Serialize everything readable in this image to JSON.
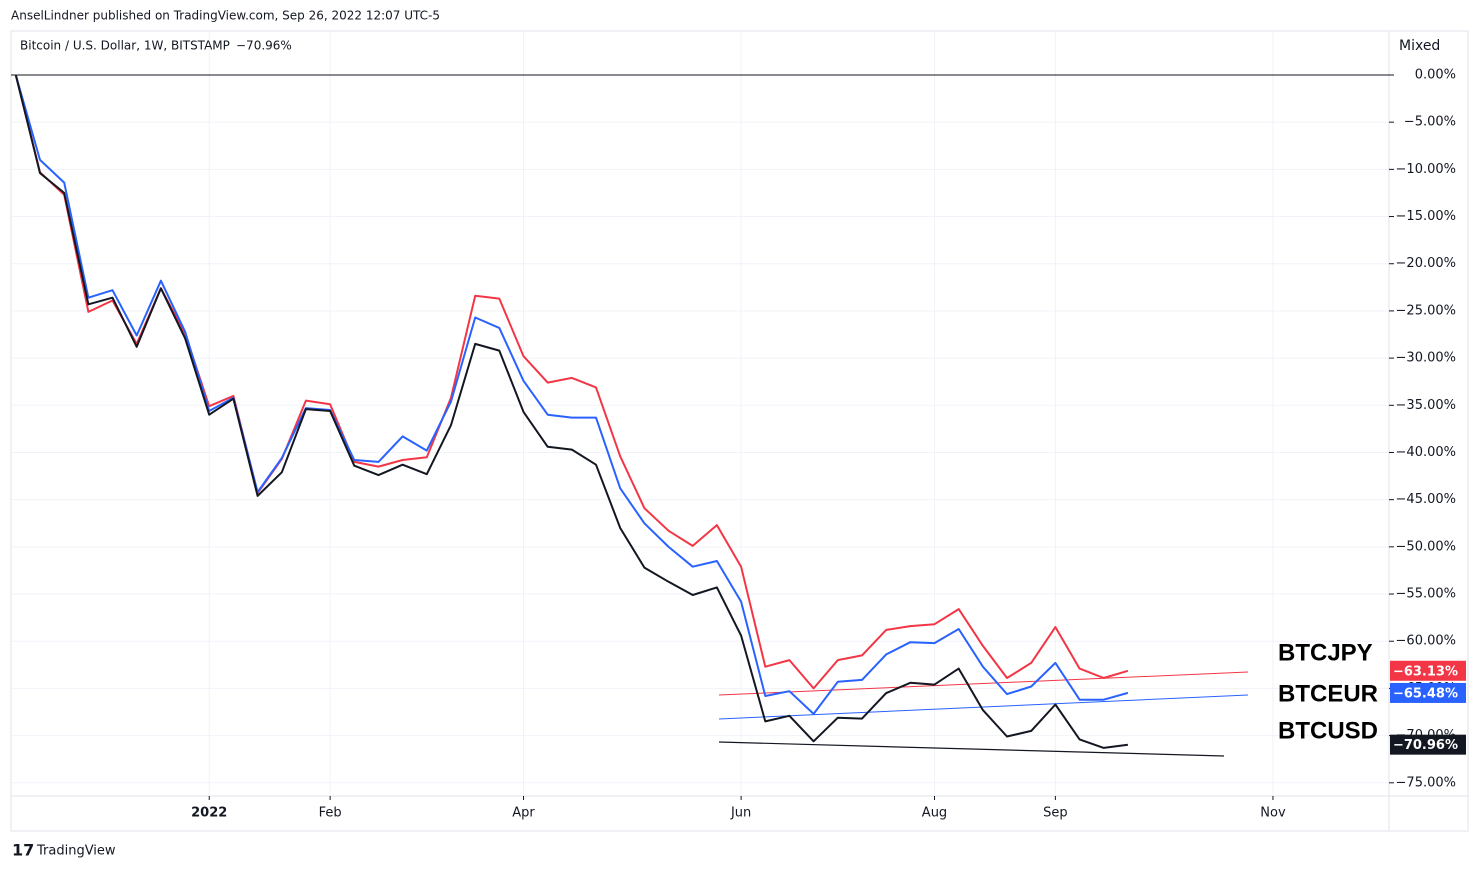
{
  "header": "AnselLindner published on TradingView.com, Sep 26, 2022 12:07 UTC-5",
  "footer": "TradingView",
  "chart_data": {
    "type": "line",
    "title": "Bitcoin / U.S. Dollar, 1W, BITSTAMP",
    "scale_mode": "Mixed",
    "grid": true,
    "x": [
      0,
      1,
      2,
      3,
      4,
      5,
      6,
      7,
      8,
      9,
      10,
      11,
      12,
      13,
      14,
      15,
      16,
      17,
      18,
      19,
      20,
      21,
      22,
      23,
      24,
      25,
      26,
      27,
      28,
      29,
      30,
      31,
      32,
      33,
      34,
      35,
      36,
      37,
      38,
      39,
      40,
      41,
      42,
      43,
      44,
      45,
      46
    ],
    "xlim": [
      -0.2,
      56.8
    ],
    "xticks": [
      {
        "value": 8,
        "label": "2022"
      },
      {
        "value": 13,
        "label": "Feb"
      },
      {
        "value": 21,
        "label": "Apr"
      },
      {
        "value": 30,
        "label": "Jun"
      },
      {
        "value": 38,
        "label": "Aug"
      },
      {
        "value": 43,
        "label": "Sep"
      },
      {
        "value": 52,
        "label": "Nov"
      }
    ],
    "ylim": [
      -76.4,
      4.66
    ],
    "yticks": [
      {
        "value": 0,
        "label": "0.00%"
      },
      {
        "value": -5,
        "label": "−5.00%"
      },
      {
        "value": -10,
        "label": "−10.00%"
      },
      {
        "value": -15,
        "label": "−15.00%"
      },
      {
        "value": -20,
        "label": "−20.00%"
      },
      {
        "value": -25,
        "label": "−25.00%"
      },
      {
        "value": -30,
        "label": "−30.00%"
      },
      {
        "value": -35,
        "label": "−35.00%"
      },
      {
        "value": -40,
        "label": "−40.00%"
      },
      {
        "value": -45,
        "label": "−45.00%"
      },
      {
        "value": -50,
        "label": "−50.00%"
      },
      {
        "value": -55,
        "label": "−55.00%"
      },
      {
        "value": -60,
        "label": "−60.00%"
      },
      {
        "value": -65,
        "label": "−65.00%"
      },
      {
        "value": -70,
        "label": "−70.00%"
      },
      {
        "value": -75,
        "label": "−75.00%"
      }
    ],
    "series": [
      {
        "name": "BTCJPY",
        "color": "#f23645",
        "last_label": "−63.13%",
        "values": [
          0,
          -10.3,
          -12.7,
          -25.1,
          -23.9,
          -28.5,
          -22.6,
          -27.4,
          -35.1,
          -34.0,
          -44.3,
          -40.7,
          -34.5,
          -34.9,
          -41.0,
          -41.5,
          -40.8,
          -40.5,
          -34.2,
          -23.4,
          -23.7,
          -29.8,
          -32.6,
          -32.1,
          -33.1,
          -40.4,
          -45.9,
          -48.3,
          -49.9,
          -47.7,
          -52.1,
          -62.7,
          -62.0,
          -65.0,
          -62.0,
          -61.5,
          -58.8,
          -58.4,
          -58.2,
          -56.6,
          -60.5,
          -63.9,
          -62.3,
          -58.5,
          -62.9,
          -63.9,
          -63.13
        ]
      },
      {
        "name": "BTCEUR",
        "color": "#2962ff",
        "last_label": "−65.48%",
        "values": [
          0,
          -9.0,
          -11.4,
          -23.6,
          -22.8,
          -27.6,
          -21.8,
          -27.2,
          -35.6,
          -34.2,
          -44.2,
          -40.6,
          -35.3,
          -35.5,
          -40.8,
          -41.0,
          -38.3,
          -39.8,
          -34.6,
          -25.7,
          -26.8,
          -32.4,
          -36.0,
          -36.3,
          -36.3,
          -43.8,
          -47.5,
          -50.0,
          -52.1,
          -51.5,
          -55.8,
          -65.8,
          -65.3,
          -67.7,
          -64.3,
          -64.1,
          -61.4,
          -60.1,
          -60.2,
          -58.7,
          -62.7,
          -65.6,
          -64.8,
          -62.3,
          -66.2,
          -66.2,
          -65.48
        ]
      },
      {
        "name": "BTCUSD",
        "color": "#131722",
        "last_label": "−70.96%",
        "values": [
          0,
          -10.4,
          -12.5,
          -24.3,
          -23.6,
          -28.8,
          -22.6,
          -27.9,
          -36.0,
          -34.3,
          -44.6,
          -42.1,
          -35.4,
          -35.6,
          -41.4,
          -42.4,
          -41.3,
          -42.3,
          -37.1,
          -28.5,
          -29.2,
          -35.7,
          -39.4,
          -39.7,
          -41.3,
          -48.0,
          -52.2,
          -53.7,
          -55.1,
          -54.3,
          -59.4,
          -68.5,
          -67.9,
          -70.6,
          -68.1,
          -68.2,
          -65.5,
          -64.4,
          -64.6,
          -62.9,
          -67.3,
          -70.1,
          -69.5,
          -66.7,
          -70.4,
          -71.3,
          -70.96
        ]
      }
    ]
  }
}
